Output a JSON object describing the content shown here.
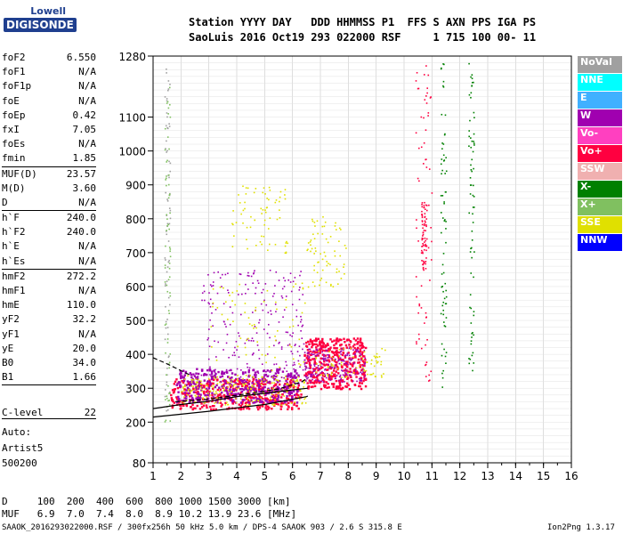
{
  "logo": {
    "brand": "Lowell",
    "product": "DIGISONDE"
  },
  "header": {
    "line1": "Station YYYY DAY   DDD HHMMSS P1  FFS S AXN PPS IGA PS",
    "line2": "SaoLuis 2016 Oct19 293 022000 RSF     1 715 100 00- 11"
  },
  "params": [
    {
      "name": "foF2",
      "value": "6.550"
    },
    {
      "name": "foF1",
      "value": "N/A"
    },
    {
      "name": "foF1p",
      "value": "N/A"
    },
    {
      "name": "foE",
      "value": "N/A"
    },
    {
      "name": "foEp",
      "value": "0.42"
    },
    {
      "name": "fxI",
      "value": "7.05"
    },
    {
      "name": "foEs",
      "value": "N/A"
    },
    {
      "name": "fmin",
      "value": "1.85"
    },
    {
      "name": "MUF(D)",
      "value": "23.57"
    },
    {
      "name": "M(D)",
      "value": "3.60"
    },
    {
      "name": "D",
      "value": "N/A"
    },
    {
      "name": "h`F",
      "value": "240.0"
    },
    {
      "name": "h`F2",
      "value": "240.0"
    },
    {
      "name": "h`E",
      "value": "N/A"
    },
    {
      "name": "h`Es",
      "value": "N/A"
    },
    {
      "name": "hmF2",
      "value": "272.2"
    },
    {
      "name": "hmF1",
      "value": "N/A"
    },
    {
      "name": "hmE",
      "value": "110.0"
    },
    {
      "name": "yF2",
      "value": "32.2"
    },
    {
      "name": "yF1",
      "value": "N/A"
    },
    {
      "name": "yE",
      "value": "20.0"
    },
    {
      "name": "B0",
      "value": "34.0"
    },
    {
      "name": "B1",
      "value": "1.66"
    }
  ],
  "clevel": {
    "name": "C-level",
    "value": "22"
  },
  "auto": [
    "Auto:",
    "Artist5",
    "500200"
  ],
  "muf_table": {
    "d_line": "D     100  200  400  600  800 1000 1500 3000 [km]",
    "muf_line": "MUF   6.9  7.0  7.4  8.0  8.9 10.2 13.9 23.6 [MHz]"
  },
  "footer": {
    "left": "SAAOK_2016293022000.RSF / 300fx256h 50 kHz 5.0 km / DPS-4 SAAOK 903 / 2.6 S 315.8 E",
    "right": "Ion2Png 1.3.17"
  },
  "legend": [
    {
      "label": "NoVal",
      "color": "#a0a0a0"
    },
    {
      "label": "NNE",
      "color": "#00ffff"
    },
    {
      "label": "E",
      "color": "#40b0ff"
    },
    {
      "label": "W",
      "color": "#a000b0"
    },
    {
      "label": "Vo-",
      "color": "#ff40c0"
    },
    {
      "label": "Vo+",
      "color": "#ff0040"
    },
    {
      "label": "SSW",
      "color": "#f0b0b0"
    },
    {
      "label": "X-",
      "color": "#008000"
    },
    {
      "label": "X+",
      "color": "#80c060"
    },
    {
      "label": "SSE",
      "color": "#e0e000"
    },
    {
      "label": "NNW",
      "color": "#0000ff"
    }
  ],
  "chart_data": {
    "type": "scatter",
    "title": "",
    "xlabel": "",
    "ylabel": "",
    "xlim": [
      1,
      16
    ],
    "ylim": [
      80,
      1280
    ],
    "x_ticks": [
      1,
      2,
      3,
      4,
      5,
      6,
      7,
      8,
      9,
      10,
      11,
      12,
      13,
      14,
      15,
      16
    ],
    "y_ticks": [
      80,
      200,
      300,
      400,
      500,
      600,
      700,
      800,
      900,
      1000,
      1100,
      1280
    ],
    "y_tick_labels": [
      "80",
      "200",
      "300",
      "400",
      "500",
      "600",
      "700",
      "800",
      "900",
      "1000",
      "1100",
      "1280"
    ],
    "grid": true,
    "legend_position": "right",
    "trace_lines": [
      {
        "style": "solid",
        "points": [
          [
            1,
            215
          ],
          [
            3,
            232
          ],
          [
            5,
            252
          ],
          [
            6.5,
            275
          ],
          [
            6.55,
            277
          ]
        ]
      },
      {
        "style": "solid",
        "points": [
          [
            1,
            240
          ],
          [
            2,
            252
          ],
          [
            3,
            262
          ],
          [
            4,
            275
          ],
          [
            5,
            285
          ],
          [
            6,
            295
          ],
          [
            6.55,
            300
          ]
        ]
      },
      {
        "style": "dashed",
        "points": [
          [
            1,
            390
          ],
          [
            1.5,
            372
          ],
          [
            2,
            352
          ],
          [
            2.3,
            340
          ]
        ]
      },
      {
        "style": "dashed",
        "points": [
          [
            1.8,
            260
          ],
          [
            3,
            268
          ],
          [
            4.5,
            285
          ],
          [
            5.5,
            298
          ],
          [
            6.3,
            318
          ],
          [
            6.55,
            330
          ]
        ]
      }
    ],
    "echo_regions": [
      {
        "series": "Vo+",
        "x": [
          1.6,
          6.3
        ],
        "y": [
          240,
          330
        ],
        "density": "high"
      },
      {
        "series": "W",
        "x": [
          1.8,
          6.2
        ],
        "y": [
          260,
          360
        ],
        "density": "high"
      },
      {
        "series": "SSE",
        "x": [
          2.0,
          6.5
        ],
        "y": [
          250,
          340
        ],
        "density": "medium"
      },
      {
        "series": "W",
        "x": [
          2.7,
          6.4
        ],
        "y": [
          320,
          650
        ],
        "density": "medium"
      },
      {
        "series": "SSE",
        "x": [
          3.0,
          6.5
        ],
        "y": [
          350,
          620
        ],
        "density": "low"
      },
      {
        "series": "SSE",
        "x": [
          3.8,
          5.8
        ],
        "y": [
          700,
          900
        ],
        "density": "low"
      },
      {
        "series": "Vo+",
        "x": [
          6.4,
          8.6
        ],
        "y": [
          300,
          450
        ],
        "density": "high"
      },
      {
        "series": "W",
        "x": [
          6.4,
          8.6
        ],
        "y": [
          320,
          420
        ],
        "density": "medium"
      },
      {
        "series": "SSE",
        "x": [
          6.8,
          9.3
        ],
        "y": [
          330,
          420
        ],
        "density": "low"
      },
      {
        "series": "SSE",
        "x": [
          6.5,
          7.9
        ],
        "y": [
          600,
          820
        ],
        "density": "low"
      },
      {
        "series": "NoVal",
        "x": [
          1.4,
          1.6
        ],
        "y": [
          200,
          1260
        ],
        "density": "low"
      },
      {
        "series": "X+",
        "x": [
          1.4,
          1.6
        ],
        "y": [
          200,
          1200
        ],
        "density": "low"
      },
      {
        "series": "Vo+",
        "x": [
          10.6,
          10.8
        ],
        "y": [
          650,
          850
        ],
        "density": "low"
      },
      {
        "series": "X-",
        "x": [
          12.3,
          12.5
        ],
        "y": [
          350,
          1260
        ],
        "density": "low"
      },
      {
        "series": "X-",
        "x": [
          11.3,
          11.5
        ],
        "y": [
          300,
          1260
        ],
        "density": "low"
      },
      {
        "series": "Vo+",
        "x": [
          10.4,
          11.0
        ],
        "y": [
          300,
          1260
        ],
        "density": "low"
      }
    ]
  }
}
